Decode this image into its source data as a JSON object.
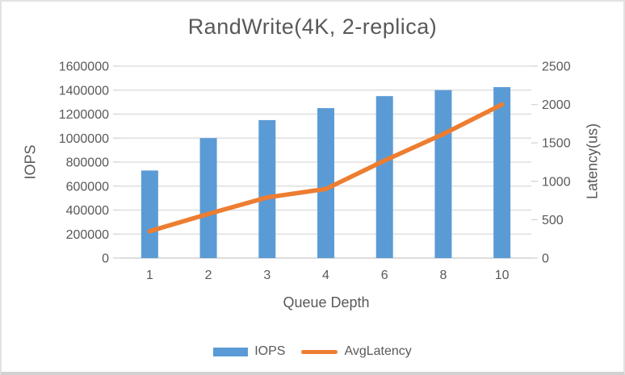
{
  "chart_data": {
    "type": "combo-bar-line",
    "title": "RandWrite(4K, 2-replica)",
    "xlabel": "Queue Depth",
    "ylabel_left": "IOPS",
    "ylabel_right": "Latency(us)",
    "categories": [
      "1",
      "2",
      "3",
      "4",
      "6",
      "8",
      "10"
    ],
    "series": [
      {
        "name": "IOPS",
        "type": "bar",
        "axis": "left",
        "color": "#5B9BD5",
        "values": [
          730000,
          1000000,
          1150000,
          1250000,
          1350000,
          1400000,
          1425000
        ]
      },
      {
        "name": "AvgLatency",
        "type": "line",
        "axis": "right",
        "color": "#ED7D31",
        "values": [
          350,
          575,
          790,
          900,
          1270,
          1615,
          2000
        ]
      }
    ],
    "y_left": {
      "min": 0,
      "max": 1600000,
      "step": 200000,
      "ticks": [
        "0",
        "200000",
        "400000",
        "600000",
        "800000",
        "1000000",
        "1200000",
        "1400000",
        "1600000"
      ]
    },
    "y_right": {
      "min": 0,
      "max": 2500,
      "step": 500,
      "ticks": [
        "0",
        "500",
        "1000",
        "1500",
        "2000",
        "2500"
      ]
    },
    "grid": true,
    "legend_position": "bottom",
    "styles": {
      "text_color": "#595959",
      "gridline_color": "#D9D9D9",
      "zero_line_color": "#C8C8C8",
      "tick_color": "#D4D4D4",
      "background": "#FFFFFF",
      "frame_border": "#E2E2E2"
    }
  },
  "legend": {
    "items": [
      {
        "label": "IOPS",
        "swatch": "bar",
        "color": "#5B9BD5"
      },
      {
        "label": "AvgLatency",
        "swatch": "line",
        "color": "#ED7D31"
      }
    ]
  }
}
